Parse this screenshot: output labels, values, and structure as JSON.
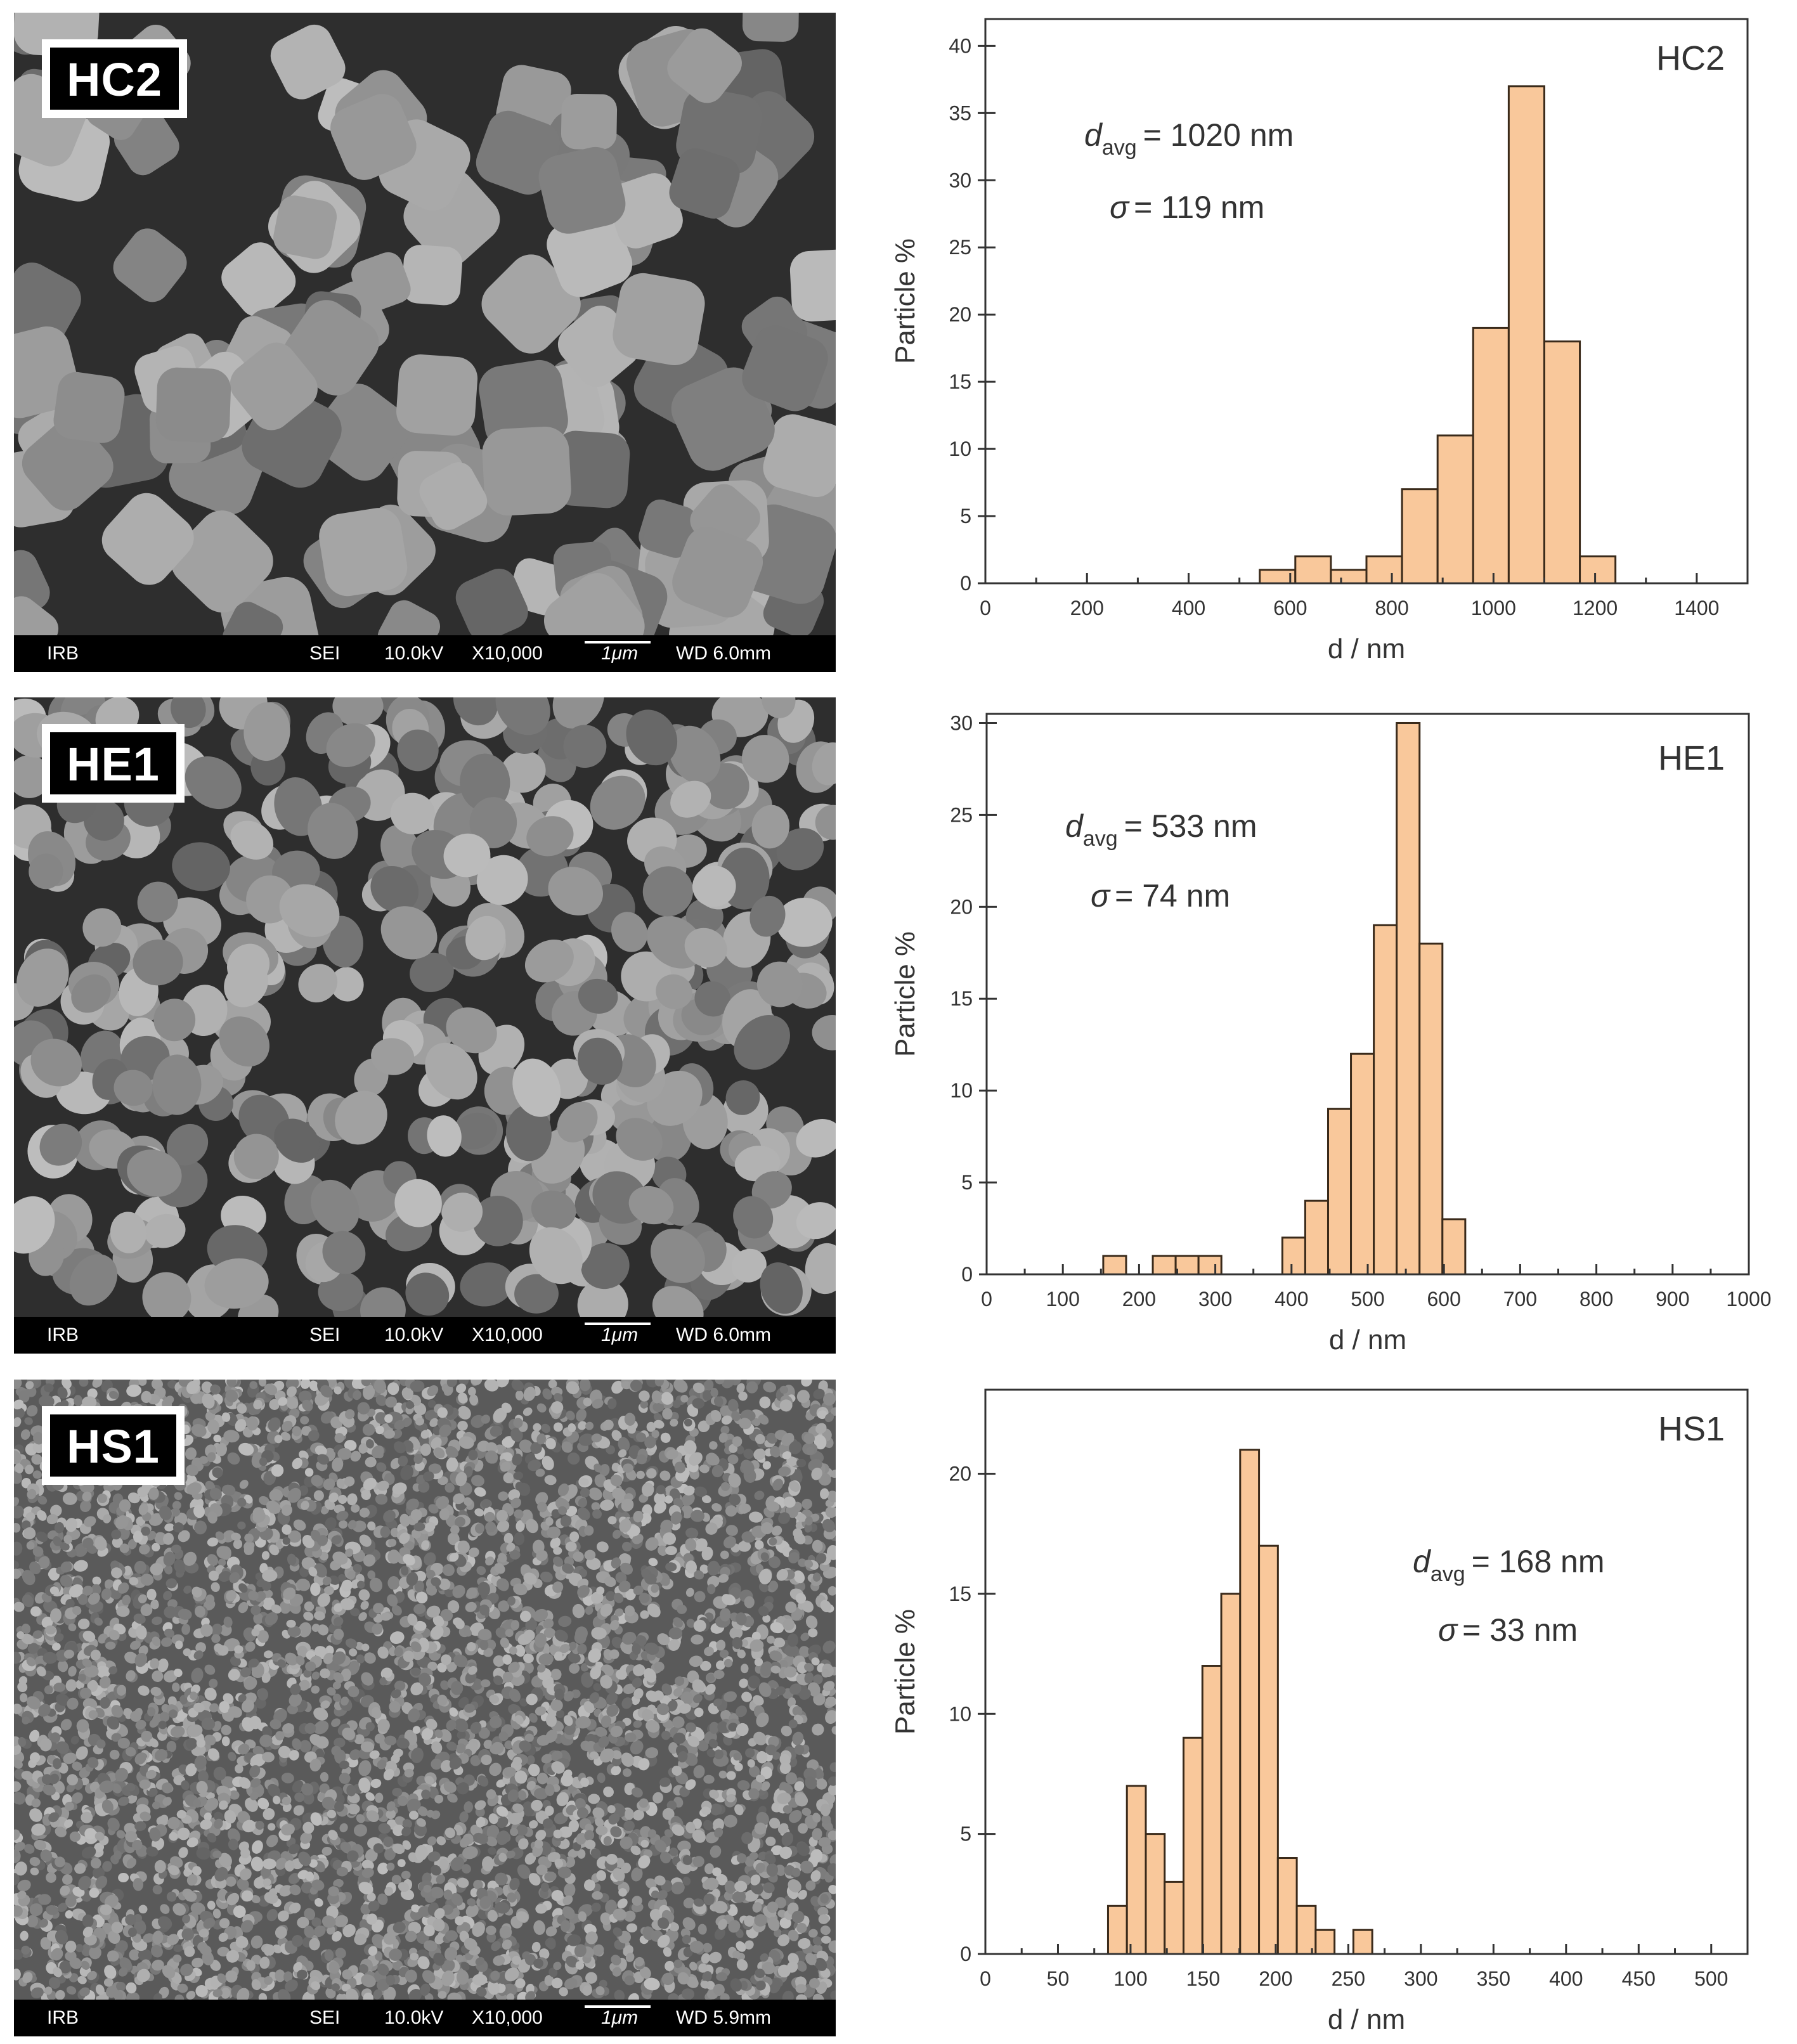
{
  "panels": [
    {
      "id": "hc2",
      "sem": {
        "label": "HC2",
        "footer": {
          "operator": "IRB",
          "mode": "SEI",
          "voltage": "10.0kV",
          "magnification": "X10,000",
          "scale": "1μm",
          "wd": "WD 6.0mm"
        }
      },
      "stats": {
        "d_symbol": "d",
        "d_sub": "avg",
        "d_value": "= 1020 nm",
        "sigma_symbol": "σ",
        "sigma_value": "= 119 nm"
      }
    },
    {
      "id": "he1",
      "sem": {
        "label": "HE1",
        "footer": {
          "operator": "IRB",
          "mode": "SEI",
          "voltage": "10.0kV",
          "magnification": "X10,000",
          "scale": "1μm",
          "wd": "WD 6.0mm"
        }
      },
      "stats": {
        "d_symbol": "d",
        "d_sub": "avg",
        "d_value": "= 533 nm",
        "sigma_symbol": "σ",
        "sigma_value": "= 74 nm"
      }
    },
    {
      "id": "hs1",
      "sem": {
        "label": "HS1",
        "footer": {
          "operator": "IRB",
          "mode": "SEI",
          "voltage": "10.0kV",
          "magnification": "X10,000",
          "scale": "1μm",
          "wd": "WD 5.9mm"
        }
      },
      "stats": {
        "d_symbol": "d",
        "d_sub": "avg",
        "d_value": "= 168 nm",
        "sigma_symbol": "σ",
        "sigma_value": "= 33 nm"
      }
    }
  ],
  "colors": {
    "bar_fill": "#f9c89b",
    "bar_stroke": "#3a2a1a",
    "axis": "#333333",
    "text": "#333333"
  },
  "chart_data": [
    {
      "type": "bar",
      "title": "HC2",
      "xlabel": "d / nm",
      "ylabel": "Particle %",
      "xlim": [
        0,
        1500
      ],
      "ylim": [
        0,
        42
      ],
      "xticks": [
        0,
        200,
        400,
        600,
        800,
        1000,
        1200,
        1400
      ],
      "yticks": [
        0,
        5,
        10,
        15,
        20,
        25,
        30,
        35,
        40
      ],
      "bin_width": 70,
      "bins": [
        {
          "x": 575,
          "y": 1
        },
        {
          "x": 645,
          "y": 2
        },
        {
          "x": 715,
          "y": 1
        },
        {
          "x": 785,
          "y": 2
        },
        {
          "x": 855,
          "y": 7
        },
        {
          "x": 925,
          "y": 11
        },
        {
          "x": 995,
          "y": 19
        },
        {
          "x": 1065,
          "y": 37
        },
        {
          "x": 1135,
          "y": 18
        },
        {
          "x": 1205,
          "y": 2
        }
      ]
    },
    {
      "type": "bar",
      "title": "HE1",
      "xlabel": "d / nm",
      "ylabel": "Particle %",
      "xlim": [
        0,
        1000
      ],
      "ylim": [
        0,
        30.5
      ],
      "xticks": [
        0,
        100,
        200,
        300,
        400,
        500,
        600,
        700,
        800,
        900,
        1000
      ],
      "yticks": [
        0,
        5,
        10,
        15,
        20,
        25,
        30
      ],
      "bin_width": 30,
      "bins": [
        {
          "x": 168,
          "y": 1
        },
        {
          "x": 233,
          "y": 1
        },
        {
          "x": 263,
          "y": 1
        },
        {
          "x": 293,
          "y": 1
        },
        {
          "x": 403,
          "y": 2
        },
        {
          "x": 433,
          "y": 4
        },
        {
          "x": 463,
          "y": 9
        },
        {
          "x": 493,
          "y": 12
        },
        {
          "x": 523,
          "y": 19
        },
        {
          "x": 553,
          "y": 30
        },
        {
          "x": 583,
          "y": 18
        },
        {
          "x": 613,
          "y": 3
        }
      ]
    },
    {
      "type": "bar",
      "title": "HS1",
      "xlabel": "d / nm",
      "ylabel": "Particle %",
      "xlim": [
        0,
        525
      ],
      "ylim": [
        0,
        23.5
      ],
      "xticks": [
        0,
        50,
        100,
        150,
        200,
        250,
        300,
        350,
        400,
        450,
        500
      ],
      "yticks": [
        0,
        5,
        10,
        15,
        20
      ],
      "bin_width": 13,
      "bins": [
        {
          "x": 91,
          "y": 2
        },
        {
          "x": 104,
          "y": 7
        },
        {
          "x": 117,
          "y": 5
        },
        {
          "x": 130,
          "y": 3
        },
        {
          "x": 143,
          "y": 9
        },
        {
          "x": 156,
          "y": 12
        },
        {
          "x": 169,
          "y": 15
        },
        {
          "x": 182,
          "y": 21
        },
        {
          "x": 195,
          "y": 17
        },
        {
          "x": 208,
          "y": 4
        },
        {
          "x": 221,
          "y": 2
        },
        {
          "x": 234,
          "y": 1
        },
        {
          "x": 260,
          "y": 1
        }
      ]
    }
  ]
}
